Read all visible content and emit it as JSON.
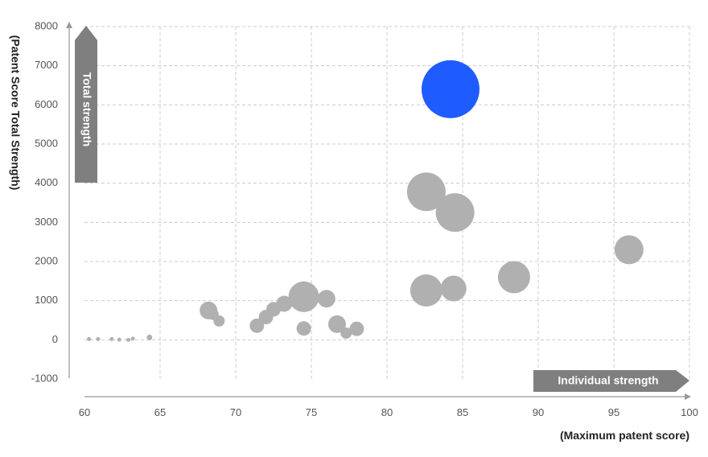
{
  "chart_data": {
    "type": "scatter",
    "subtype": "bubble",
    "title": "",
    "xlabel": "(Maximum patent score)",
    "ylabel": "(Patent Score Total Strength)",
    "xlim": [
      60,
      100
    ],
    "ylim": [
      -1000,
      8000
    ],
    "x_ticks": [
      "60",
      "65",
      "70",
      "75",
      "80",
      "85",
      "90",
      "95",
      "100"
    ],
    "y_ticks": [
      "8000",
      "7000",
      "6000",
      "5000",
      "4000",
      "3000",
      "2000",
      "1000",
      "0",
      "-1000"
    ],
    "x_tick_values": [
      60,
      65,
      70,
      75,
      80,
      85,
      90,
      95,
      100
    ],
    "y_tick_values": [
      8000,
      7000,
      6000,
      5000,
      4000,
      3000,
      2000,
      1000,
      0,
      -1000
    ],
    "grid": true,
    "grid_style": "dashed",
    "annotations": {
      "vertical_arrow": "Total strength",
      "horizontal_arrow": "Individual strength"
    },
    "colors": {
      "highlight": "#1f5cff",
      "bubble": "#b0b0b0",
      "arrow": "#7f7f7f",
      "grid": "#cccccc",
      "axis": "#999999"
    },
    "points": [
      {
        "x": 84.2,
        "y": 6400,
        "size": 36,
        "highlight": true
      },
      {
        "x": 82.6,
        "y": 3780,
        "size": 24
      },
      {
        "x": 84.5,
        "y": 3250,
        "size": 24
      },
      {
        "x": 96.0,
        "y": 2300,
        "size": 18
      },
      {
        "x": 88.4,
        "y": 1600,
        "size": 20
      },
      {
        "x": 82.6,
        "y": 1260,
        "size": 20
      },
      {
        "x": 84.4,
        "y": 1310,
        "size": 16
      },
      {
        "x": 74.5,
        "y": 1100,
        "size": 19
      },
      {
        "x": 76.0,
        "y": 1050,
        "size": 11
      },
      {
        "x": 73.2,
        "y": 920,
        "size": 10
      },
      {
        "x": 72.5,
        "y": 780,
        "size": 9
      },
      {
        "x": 72.0,
        "y": 580,
        "size": 9
      },
      {
        "x": 71.4,
        "y": 360,
        "size": 9
      },
      {
        "x": 74.5,
        "y": 290,
        "size": 9
      },
      {
        "x": 76.7,
        "y": 400,
        "size": 11
      },
      {
        "x": 77.3,
        "y": 170,
        "size": 7
      },
      {
        "x": 78.0,
        "y": 280,
        "size": 9
      },
      {
        "x": 68.2,
        "y": 750,
        "size": 11
      },
      {
        "x": 68.5,
        "y": 650,
        "size": 7
      },
      {
        "x": 68.9,
        "y": 480,
        "size": 7
      },
      {
        "x": 60.3,
        "y": 20,
        "size": 2.5
      },
      {
        "x": 60.9,
        "y": 20,
        "size": 2.5
      },
      {
        "x": 61.8,
        "y": 20,
        "size": 2.5
      },
      {
        "x": 62.3,
        "y": 5,
        "size": 2.5
      },
      {
        "x": 62.9,
        "y": 0,
        "size": 2.5
      },
      {
        "x": 63.2,
        "y": 30,
        "size": 2.5
      },
      {
        "x": 64.3,
        "y": 60,
        "size": 3.5
      }
    ]
  }
}
